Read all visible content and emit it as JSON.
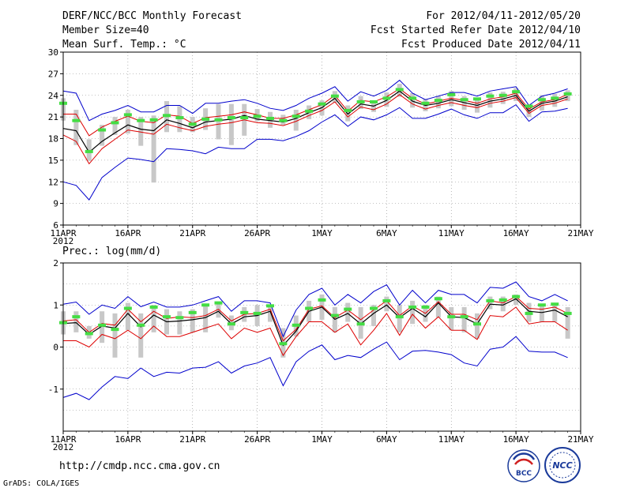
{
  "header": {
    "title": "DERF/NCC/BCC Monthly Forecast",
    "member_size": "Member Size=40",
    "variable1": "Mean Surf. Temp.: °C",
    "forecast_period": "For 2012/04/11-2012/05/20",
    "started": "Fcst Started Refer Date 2012/04/10",
    "produced": "Fcst Produced Date 2012/04/11"
  },
  "footer": {
    "url": "http://cmdp.ncc.cma.gov.cn",
    "credit": "GrADS: COLA/IGES",
    "logo_bcc": "BCC",
    "logo_ncc": "NCC"
  },
  "colors": {
    "upper": "#0000cc",
    "lower": "#0000cc",
    "red": "#dd0000",
    "mean": "#000000",
    "box": "#c8c8c8",
    "obs": "#44dd44",
    "grid": "#888888"
  },
  "chart_data": [
    {
      "type": "line",
      "title": "Mean Surf. Temp.: °C",
      "ylabel": "Mean Surf. Temp.: °C",
      "ylim": [
        6,
        30
      ],
      "yticks": [
        6,
        9,
        12,
        15,
        18,
        21,
        24,
        27,
        30
      ],
      "xlim": [
        1,
        41
      ],
      "xticks": [
        {
          "x": 1,
          "label": "11APR",
          "sub": "2012"
        },
        {
          "x": 6,
          "label": "16APR"
        },
        {
          "x": 11,
          "label": "21APR"
        },
        {
          "x": 16,
          "label": "26APR"
        },
        {
          "x": 21,
          "label": "1MAY"
        },
        {
          "x": 26,
          "label": "6MAY"
        },
        {
          "x": 31,
          "label": "11MAY"
        },
        {
          "x": 36,
          "label": "16MAY"
        },
        {
          "x": 41,
          "label": "21MAY"
        }
      ],
      "x": [
        1,
        2,
        3,
        4,
        5,
        6,
        7,
        8,
        9,
        10,
        11,
        12,
        13,
        14,
        15,
        16,
        17,
        18,
        19,
        20,
        21,
        22,
        23,
        24,
        25,
        26,
        27,
        28,
        29,
        30,
        31,
        32,
        33,
        34,
        35,
        36,
        37,
        38,
        39,
        40
      ],
      "series": [
        {
          "name": "upper",
          "values": [
            24.6,
            24.3,
            20.5,
            21.4,
            21.9,
            22.6,
            21.7,
            21.7,
            22.6,
            22.6,
            21.5,
            22.9,
            22.9,
            23.2,
            23.4,
            22.9,
            22.2,
            21.9,
            22.6,
            23.6,
            24.3,
            25.2,
            23.2,
            24.5,
            23.9,
            24.7,
            26.1,
            24.3,
            23.4,
            23.9,
            24.4,
            24.4,
            23.9,
            24.6,
            24.9,
            25.2,
            22.6,
            23.9,
            24.3,
            24.9
          ]
        },
        {
          "name": "high",
          "values": [
            21.4,
            21.4,
            18.4,
            19.6,
            20.4,
            21.1,
            20.4,
            20.2,
            21.3,
            21.1,
            20.1,
            20.9,
            21.1,
            21.3,
            21.7,
            21.3,
            20.8,
            20.8,
            21.3,
            22.0,
            22.7,
            24.0,
            21.8,
            23.3,
            23.1,
            23.8,
            24.9,
            23.6,
            22.8,
            23.2,
            23.6,
            23.3,
            22.9,
            23.5,
            23.8,
            24.3,
            22.1,
            23.1,
            23.4,
            24.1
          ]
        },
        {
          "name": "mean",
          "values": [
            19.4,
            19.1,
            16.1,
            17.6,
            18.8,
            19.9,
            19.3,
            19.1,
            20.6,
            20.1,
            19.5,
            20.3,
            20.5,
            20.7,
            21.2,
            20.7,
            20.5,
            20.3,
            20.8,
            21.6,
            22.3,
            23.6,
            21.4,
            22.8,
            22.5,
            23.3,
            24.6,
            23.2,
            22.6,
            22.9,
            23.4,
            23.0,
            22.6,
            23.2,
            23.5,
            24.0,
            21.8,
            22.9,
            23.2,
            23.8
          ]
        },
        {
          "name": "low",
          "values": [
            18.5,
            17.6,
            14.5,
            16.6,
            17.9,
            19.2,
            18.9,
            18.6,
            20.0,
            19.5,
            19.1,
            19.7,
            20.0,
            20.2,
            20.6,
            20.2,
            20.1,
            19.8,
            20.4,
            21.2,
            21.9,
            23.1,
            21.0,
            22.4,
            22.0,
            22.8,
            24.1,
            22.8,
            22.1,
            22.6,
            23.0,
            22.6,
            22.3,
            22.9,
            23.2,
            23.7,
            21.5,
            22.6,
            22.9,
            23.5
          ]
        },
        {
          "name": "lower",
          "values": [
            12.0,
            11.5,
            9.5,
            12.6,
            14.0,
            15.3,
            15.1,
            14.8,
            16.6,
            16.5,
            16.3,
            15.9,
            16.8,
            16.6,
            16.6,
            17.9,
            17.9,
            17.7,
            18.3,
            19.1,
            20.3,
            21.3,
            19.7,
            21.0,
            20.6,
            21.3,
            22.3,
            20.8,
            20.8,
            21.4,
            22.1,
            21.3,
            20.8,
            21.6,
            21.6,
            22.7,
            20.4,
            21.7,
            21.8,
            22.2
          ]
        },
        {
          "name": "observed",
          "values": [
            22.9,
            20.5,
            16.2,
            19.2,
            20.2,
            21.3,
            20.5,
            20.6,
            21.2,
            20.9,
            20.0,
            20.7,
            20.6,
            20.9,
            20.9,
            21.1,
            20.8,
            20.5,
            21.1,
            21.8,
            22.8,
            23.9,
            21.9,
            23.1,
            23.1,
            23.6,
            24.8,
            23.6,
            22.9,
            23.3,
            24.1,
            23.4,
            23.5,
            23.9,
            24.0,
            24.5,
            22.5,
            23.4,
            23.6,
            24.2
          ]
        },
        {
          "name": "box_high",
          "values": [
            23.6,
            22.0,
            17.9,
            19.9,
            21.0,
            22.0,
            21.0,
            21.2,
            23.2,
            22.5,
            21.0,
            22.2,
            22.8,
            22.8,
            22.8,
            22.1,
            21.7,
            21.3,
            22.0,
            22.6,
            23.3,
            24.6,
            22.6,
            23.9,
            23.2,
            24.4,
            25.6,
            24.3,
            23.5,
            23.9,
            24.6,
            23.9,
            23.5,
            24.4,
            24.5,
            25.0,
            22.7,
            24.0,
            24.2,
            24.7
          ]
        },
        {
          "name": "box_low",
          "values": [
            20.5,
            17.1,
            14.9,
            17.0,
            18.5,
            18.7,
            17.0,
            11.9,
            18.9,
            18.9,
            18.9,
            19.2,
            17.9,
            17.1,
            18.4,
            20.4,
            19.5,
            19.9,
            19.1,
            20.7,
            21.2,
            23.0,
            20.4,
            22.1,
            21.7,
            22.4,
            23.8,
            22.3,
            21.8,
            22.2,
            22.5,
            22.0,
            21.6,
            22.3,
            22.8,
            23.2,
            21.0,
            21.9,
            22.4,
            23.2
          ]
        }
      ]
    },
    {
      "type": "line",
      "title": "Prec.: log(mm/d)",
      "ylabel": "Prec.: log(mm/d)",
      "ylim": [
        -2,
        2
      ],
      "yticks": [
        -1,
        0,
        1,
        2
      ],
      "xlim": [
        1,
        41
      ],
      "xticks": [
        {
          "x": 1,
          "label": "11APR",
          "sub": "2012"
        },
        {
          "x": 6,
          "label": "16APR"
        },
        {
          "x": 11,
          "label": "21APR"
        },
        {
          "x": 16,
          "label": "26APR"
        },
        {
          "x": 21,
          "label": "1MAY"
        },
        {
          "x": 26,
          "label": "6MAY"
        },
        {
          "x": 31,
          "label": "11MAY"
        },
        {
          "x": 36,
          "label": "16MAY"
        },
        {
          "x": 41,
          "label": "21MAY"
        }
      ],
      "x": [
        1,
        2,
        3,
        4,
        5,
        6,
        7,
        8,
        9,
        10,
        11,
        12,
        13,
        14,
        15,
        16,
        17,
        18,
        19,
        20,
        21,
        22,
        23,
        24,
        25,
        26,
        27,
        28,
        29,
        30,
        31,
        32,
        33,
        34,
        35,
        36,
        37,
        38,
        39,
        40
      ],
      "series": [
        {
          "name": "upper",
          "values": [
            1.02,
            1.07,
            0.78,
            1.0,
            0.92,
            1.2,
            0.96,
            1.07,
            0.95,
            0.95,
            1.0,
            1.1,
            1.2,
            0.85,
            1.1,
            1.1,
            1.05,
            0.25,
            0.88,
            1.25,
            1.4,
            1.0,
            1.25,
            1.05,
            1.32,
            1.48,
            1.0,
            1.35,
            1.05,
            1.35,
            1.25,
            1.25,
            1.05,
            1.42,
            1.4,
            1.55,
            1.2,
            1.1,
            1.25,
            1.1
          ]
        },
        {
          "name": "high",
          "values": [
            0.62,
            0.65,
            0.35,
            0.56,
            0.52,
            0.9,
            0.6,
            0.85,
            0.68,
            0.72,
            0.7,
            0.75,
            0.9,
            0.62,
            0.78,
            0.8,
            0.9,
            0.15,
            0.42,
            0.9,
            0.98,
            0.7,
            0.88,
            0.65,
            0.88,
            1.1,
            0.75,
            0.98,
            0.8,
            1.08,
            0.78,
            0.78,
            0.65,
            1.1,
            1.05,
            1.2,
            0.92,
            0.9,
            0.95,
            0.8
          ]
        },
        {
          "name": "mean",
          "values": [
            0.56,
            0.58,
            0.3,
            0.5,
            0.45,
            0.8,
            0.48,
            0.76,
            0.6,
            0.62,
            0.65,
            0.7,
            0.85,
            0.55,
            0.72,
            0.75,
            0.85,
            0.04,
            0.38,
            0.85,
            0.95,
            0.66,
            0.8,
            0.55,
            0.8,
            1.0,
            0.7,
            0.92,
            0.72,
            1.05,
            0.72,
            0.7,
            0.55,
            1.02,
            1.0,
            1.15,
            0.85,
            0.82,
            0.88,
            0.72
          ]
        },
        {
          "name": "low",
          "values": [
            0.15,
            0.15,
            0.0,
            0.3,
            0.2,
            0.4,
            0.2,
            0.5,
            0.25,
            0.25,
            0.35,
            0.45,
            0.55,
            0.2,
            0.45,
            0.35,
            0.45,
            -0.2,
            0.25,
            0.6,
            0.6,
            0.35,
            0.55,
            0.05,
            0.4,
            0.8,
            0.28,
            0.78,
            0.45,
            0.72,
            0.4,
            0.4,
            0.18,
            0.75,
            0.72,
            0.95,
            0.55,
            0.6,
            0.6,
            0.4
          ]
        },
        {
          "name": "lower",
          "values": [
            -1.2,
            -1.1,
            -1.25,
            -0.95,
            -0.7,
            -0.75,
            -0.5,
            -0.7,
            -0.6,
            -0.62,
            -0.5,
            -0.48,
            -0.35,
            -0.62,
            -0.45,
            -0.38,
            -0.25,
            -0.92,
            -0.35,
            -0.1,
            0.05,
            -0.3,
            -0.2,
            -0.25,
            -0.05,
            0.12,
            -0.3,
            -0.1,
            -0.08,
            -0.12,
            -0.18,
            -0.38,
            -0.45,
            -0.05,
            0.0,
            0.25,
            -0.1,
            -0.12,
            -0.12,
            -0.25
          ]
        },
        {
          "name": "observed",
          "values": [
            0.58,
            0.72,
            0.32,
            0.52,
            0.42,
            0.92,
            0.52,
            0.95,
            0.72,
            0.7,
            0.82,
            1.0,
            1.05,
            0.55,
            0.82,
            0.8,
            0.98,
            0.08,
            0.52,
            0.92,
            1.12,
            0.75,
            0.9,
            0.55,
            0.92,
            1.1,
            0.72,
            0.95,
            0.95,
            1.15,
            0.72,
            0.72,
            0.55,
            1.1,
            1.12,
            1.2,
            0.8,
            1.0,
            1.02,
            0.8
          ]
        },
        {
          "name": "box_high",
          "values": [
            0.85,
            0.85,
            0.5,
            0.85,
            0.8,
            1.05,
            0.8,
            1.0,
            0.9,
            0.85,
            0.9,
            1.0,
            1.05,
            0.75,
            0.95,
            1.0,
            1.0,
            0.45,
            0.75,
            1.1,
            1.25,
            0.95,
            1.05,
            0.95,
            1.0,
            1.2,
            1.0,
            1.1,
            1.0,
            1.2,
            0.95,
            0.95,
            0.8,
            1.2,
            1.2,
            1.25,
            1.05,
            1.0,
            1.05,
            0.95
          ]
        },
        {
          "name": "box_low",
          "values": [
            0.3,
            0.35,
            0.2,
            0.1,
            -0.25,
            0.4,
            -0.25,
            0.35,
            0.3,
            0.3,
            0.35,
            0.35,
            0.7,
            0.4,
            0.6,
            0.5,
            0.6,
            -0.25,
            0.25,
            0.6,
            0.65,
            0.35,
            0.6,
            0.2,
            0.5,
            0.85,
            0.35,
            0.55,
            0.6,
            0.7,
            0.4,
            0.35,
            0.2,
            0.9,
            0.85,
            1.0,
            0.6,
            0.6,
            0.6,
            0.2
          ]
        }
      ]
    }
  ]
}
